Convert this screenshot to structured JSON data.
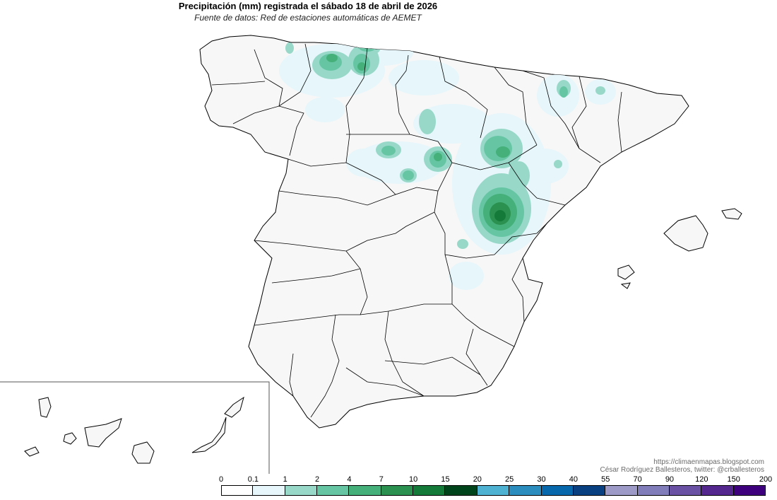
{
  "title": "Precipitación (mm) registrada el sábado 18 de abril de 2026",
  "subtitle": "Fuente de datos: Red de estaciones automáticas de AEMET",
  "credits": {
    "url": "https://climaenmapas.blogspot.com",
    "author": "César Rodríguez Ballesteros, twitter: @crballesteros"
  },
  "legend": {
    "breaks": [
      "0",
      "0.1",
      "1",
      "2",
      "4",
      "7",
      "10",
      "15",
      "20",
      "25",
      "30",
      "40",
      "55",
      "70",
      "90",
      "120",
      "150",
      "200"
    ],
    "colors": [
      "#ffffff",
      "#e6f6fa",
      "#98d8c8",
      "#66c6a4",
      "#45b07a",
      "#2b9150",
      "#137a3a",
      "#00441b",
      "#4eb3d3",
      "#2b8cbe",
      "#0868ac",
      "#084081",
      "#9e9ac8",
      "#807dba",
      "#6a51a3",
      "#54278f",
      "#3f007d"
    ]
  },
  "map_colors": {
    "background": "#f7f7f7",
    "border": "#000000",
    "c1": "#e6f6fa",
    "c2": "#98d8c8",
    "c3": "#66c6a4",
    "c4": "#45b07a",
    "c5": "#2b9150",
    "c6": "#137a3a"
  }
}
